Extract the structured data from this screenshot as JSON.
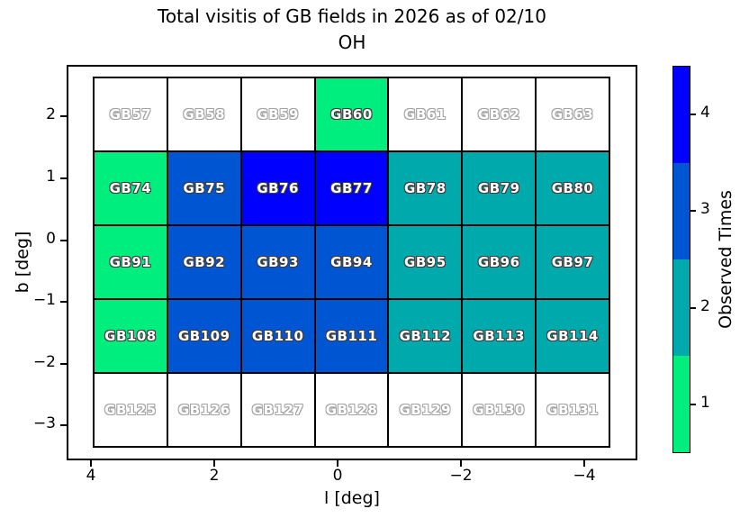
{
  "title": {
    "line1": "Total visitis of GB fields in 2026 as of 02/10",
    "line2": "OH"
  },
  "axes": {
    "xlabel": "l [deg]",
    "ylabel": "b [deg]",
    "x_tick_labels": [
      "4",
      "2",
      "0",
      "−2",
      "−4"
    ],
    "y_tick_labels": [
      "2",
      "1",
      "0",
      "−1",
      "−2",
      "−3"
    ]
  },
  "colorbar": {
    "label": "Observed Times",
    "tick_labels": [
      "4",
      "3",
      "2",
      "1"
    ],
    "segment_values_top_to_bottom": [
      4,
      3,
      2,
      1
    ]
  },
  "chart_data": {
    "type": "heatmap",
    "title": "Total visitis of GB fields in 2026 as of 02/10 OH",
    "xlabel": "l [deg]",
    "ylabel": "b [deg]",
    "x_tick_labels": [
      "4",
      "2",
      "0",
      "−2",
      "−4"
    ],
    "y_tick_labels": [
      "2",
      "1",
      "0",
      "−1",
      "−2",
      "−3"
    ],
    "x_axis_reversed": true,
    "colorbar_label": "Observed Times",
    "colorbar_tick_labels": [
      "4",
      "3",
      "2",
      "1"
    ],
    "value_colors": {
      "0": "#ffffff",
      "1": "#00ee7d",
      "2": "#00a9ac",
      "3": "#0056d2",
      "4": "#0000ff"
    },
    "rows": [
      {
        "fields": [
          {
            "name": "GB57",
            "observed": 0
          },
          {
            "name": "GB58",
            "observed": 0
          },
          {
            "name": "GB59",
            "observed": 0
          },
          {
            "name": "GB60",
            "observed": 1
          },
          {
            "name": "GB61",
            "observed": 0
          },
          {
            "name": "GB62",
            "observed": 0
          },
          {
            "name": "GB63",
            "observed": 0
          }
        ]
      },
      {
        "fields": [
          {
            "name": "GB74",
            "observed": 1
          },
          {
            "name": "GB75",
            "observed": 3
          },
          {
            "name": "GB76",
            "observed": 4
          },
          {
            "name": "GB77",
            "observed": 4
          },
          {
            "name": "GB78",
            "observed": 2
          },
          {
            "name": "GB79",
            "observed": 2
          },
          {
            "name": "GB80",
            "observed": 2
          }
        ]
      },
      {
        "fields": [
          {
            "name": "GB91",
            "observed": 1
          },
          {
            "name": "GB92",
            "observed": 3
          },
          {
            "name": "GB93",
            "observed": 3
          },
          {
            "name": "GB94",
            "observed": 3
          },
          {
            "name": "GB95",
            "observed": 2
          },
          {
            "name": "GB96",
            "observed": 2
          },
          {
            "name": "GB97",
            "observed": 2
          }
        ]
      },
      {
        "fields": [
          {
            "name": "GB108",
            "observed": 1
          },
          {
            "name": "GB109",
            "observed": 3
          },
          {
            "name": "GB110",
            "observed": 3
          },
          {
            "name": "GB111",
            "observed": 3
          },
          {
            "name": "GB112",
            "observed": 2
          },
          {
            "name": "GB113",
            "observed": 2
          },
          {
            "name": "GB114",
            "observed": 2
          }
        ]
      },
      {
        "fields": [
          {
            "name": "GB125",
            "observed": 0
          },
          {
            "name": "GB126",
            "observed": 0
          },
          {
            "name": "GB127",
            "observed": 0
          },
          {
            "name": "GB128",
            "observed": 0
          },
          {
            "name": "GB129",
            "observed": 0
          },
          {
            "name": "GB130",
            "observed": 0
          },
          {
            "name": "GB131",
            "observed": 0
          }
        ]
      }
    ]
  }
}
